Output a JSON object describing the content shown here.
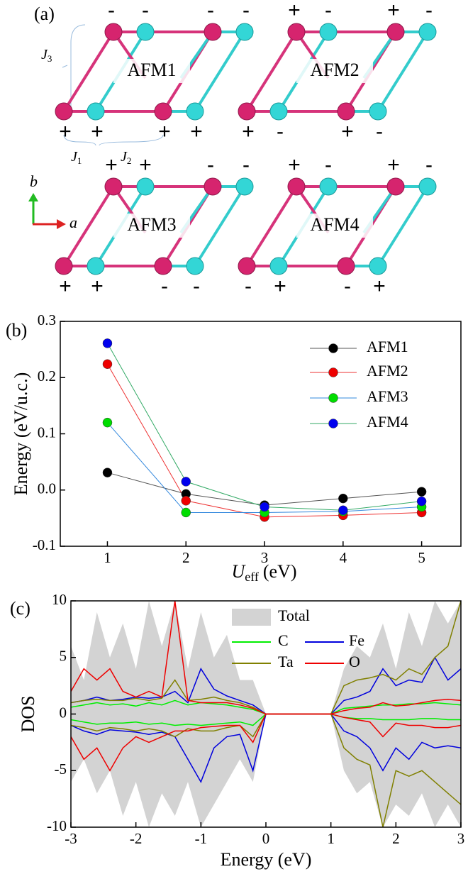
{
  "panel_a": {
    "label": "(a)",
    "diagrams": [
      {
        "label": "AFM1",
        "signs_top": [
          "-",
          "-",
          "-",
          "-"
        ],
        "signs_bottom": [
          "+",
          "+",
          "+",
          "+"
        ]
      },
      {
        "label": "AFM2",
        "signs_top": [
          "+",
          "-",
          "+",
          "-"
        ],
        "signs_bottom": [
          "+",
          "-",
          "+",
          "-"
        ]
      },
      {
        "label": "AFM3",
        "signs_top": [
          "+",
          "+",
          "-",
          "-"
        ],
        "signs_bottom": [
          "+",
          "+",
          "-",
          "-"
        ]
      },
      {
        "label": "AFM4",
        "signs_top": [
          "+",
          "-",
          "+",
          "-"
        ],
        "signs_bottom": [
          "-",
          "+",
          "-",
          "+"
        ]
      }
    ],
    "couplings": [
      {
        "symbol": "J",
        "sub": "3"
      },
      {
        "symbol": "J",
        "sub": "1"
      },
      {
        "symbol": "J",
        "sub": "2"
      }
    ],
    "axes": [
      "b",
      "a"
    ]
  },
  "chart_data": [
    {
      "type": "line",
      "panel_label": "(b)",
      "ylabel": "Energy (eV/u.c.)",
      "xlabel": {
        "symbol": "U",
        "sub": "eff",
        "unit": "(eV)"
      },
      "x": [
        1,
        2,
        3,
        4,
        5
      ],
      "xlim": [
        0.4,
        5.5
      ],
      "xticks": [
        1,
        2,
        3,
        4,
        5
      ],
      "ylim": [
        -0.1,
        0.3
      ],
      "yticks": [
        -0.1,
        {
          "value": 0,
          "label": "0.0"
        },
        0.1,
        0.2,
        0.3
      ],
      "legend": "upper right",
      "series": [
        {
          "name": "AFM1",
          "color": "#000000",
          "line_color": "#555555",
          "values": [
            0.031,
            -0.007,
            -0.027,
            -0.015,
            -0.003
          ]
        },
        {
          "name": "AFM2",
          "color": "#ee0000",
          "line_color": "#ee3333",
          "values": [
            0.224,
            -0.019,
            -0.048,
            -0.045,
            -0.04
          ]
        },
        {
          "name": "AFM3",
          "color": "#00dd00",
          "line_color": "#3388dd",
          "values": [
            0.12,
            -0.04,
            -0.04,
            -0.038,
            -0.03
          ]
        },
        {
          "name": "AFM4",
          "color": "#0000ee",
          "line_color": "#33aa66",
          "values": [
            0.261,
            0.015,
            -0.03,
            -0.036,
            -0.02
          ]
        }
      ]
    },
    {
      "type": "dos",
      "panel_label": "(c)",
      "ylabel": "DOS",
      "xlabel": "Energy (eV)",
      "x": [
        -3,
        -2.8,
        -2.6,
        -2.4,
        -2.2,
        -2,
        -1.8,
        -1.6,
        -1.4,
        -1.2,
        -1,
        -0.8,
        -0.6,
        -0.4,
        -0.2,
        0,
        0.2,
        0.4,
        0.6,
        0.8,
        1,
        1.2,
        1.4,
        1.6,
        1.8,
        2,
        2.2,
        2.4,
        2.6,
        2.8,
        3
      ],
      "xlim": [
        -3,
        3
      ],
      "xticks": [
        -3,
        -2,
        -1,
        0,
        1,
        2,
        3
      ],
      "ylim": [
        -10,
        10
      ],
      "yticks": [
        -10,
        -5,
        0,
        5,
        10
      ],
      "series": [
        {
          "name": "Total",
          "color": "#d3d3d3",
          "fill": true,
          "values": [
            6,
            3,
            9,
            5,
            8,
            4,
            10,
            6,
            10,
            4,
            9,
            5,
            7,
            3,
            3,
            0,
            0,
            0,
            0,
            0,
            0,
            4,
            6,
            5,
            8,
            4,
            9,
            6,
            10,
            8,
            10
          ],
          "values_down": [
            -6,
            -4,
            -7,
            -5,
            -9,
            -6,
            -10,
            -7,
            -9,
            -6,
            -10,
            -8,
            -6,
            -4,
            -6,
            0,
            0,
            0,
            0,
            0,
            0,
            -5,
            -7,
            -6,
            -10,
            -8,
            -9,
            -7,
            -10,
            -8,
            -10
          ]
        },
        {
          "name": "C",
          "color": "#00ee00",
          "values": [
            0.6,
            0.8,
            1,
            0.8,
            0.9,
            0.7,
            1,
            0.8,
            1.2,
            0.8,
            1,
            0.9,
            0.8,
            0.6,
            0.4,
            0,
            0,
            0,
            0,
            0,
            0,
            0.5,
            0.6,
            0.7,
            0.8,
            0.8,
            0.9,
            0.9,
            1,
            0.9,
            0.8
          ],
          "values_down": [
            -0.5,
            -0.7,
            -0.9,
            -0.8,
            -0.8,
            -0.7,
            -0.9,
            -0.8,
            -1,
            -0.9,
            -1,
            -0.9,
            -0.8,
            -0.7,
            -1,
            0,
            0,
            0,
            0,
            0,
            0,
            -0.3,
            -0.4,
            -0.4,
            -0.5,
            -0.5,
            -0.5,
            -0.4,
            -0.4,
            -0.5,
            -0.5
          ]
        },
        {
          "name": "Fe",
          "color": "#0000dd",
          "values": [
            1,
            1.2,
            1.5,
            1.2,
            1.3,
            1.5,
            1.4,
            1.5,
            2,
            1,
            4,
            2.2,
            1.6,
            1.2,
            0.8,
            0,
            0,
            0,
            0,
            0,
            0,
            1.2,
            1.5,
            2,
            4,
            2.5,
            3,
            2.8,
            5,
            3,
            4
          ],
          "values_down": [
            -1,
            -1.5,
            -1.8,
            -1.4,
            -1.5,
            -1.6,
            -1.8,
            -1.6,
            -2,
            -4,
            -6,
            -3,
            -2,
            -1.8,
            -5,
            0,
            0,
            0,
            0,
            0,
            0,
            -1.5,
            -2,
            -3,
            -5,
            -3,
            -4,
            -2.5,
            -3,
            -2.8,
            -3
          ]
        },
        {
          "name": "Ta",
          "color": "#808000",
          "values": [
            1,
            1.2,
            1.3,
            1.2,
            1.2,
            1.4,
            1.2,
            1.4,
            3,
            1.2,
            1.3,
            1.5,
            1.2,
            1,
            0.6,
            0,
            0,
            0,
            0,
            0,
            0,
            2.5,
            3,
            3.2,
            3.5,
            3,
            4,
            3.5,
            5,
            6,
            10
          ],
          "values_down": [
            -1,
            -1.2,
            -1.5,
            -1.2,
            -1.3,
            -1.5,
            -1.3,
            -1.5,
            -2,
            -1.3,
            -1.5,
            -1.5,
            -1.2,
            -1,
            -2,
            0,
            0,
            0,
            0,
            0,
            0,
            -3,
            -4,
            -4.5,
            -10,
            -5,
            -5.5,
            -5,
            -6,
            -7,
            -8
          ]
        },
        {
          "name": "O",
          "color": "#ee0000",
          "values": [
            2,
            4,
            3,
            4,
            2,
            1.5,
            2,
            1.5,
            10,
            1.2,
            1,
            1,
            1,
            0.8,
            0.5,
            0,
            0,
            0,
            0,
            0,
            0,
            0.3,
            0.5,
            0.6,
            1,
            0.7,
            0.8,
            1,
            1.2,
            1.3,
            1.2
          ],
          "values_down": [
            -2,
            -4,
            -3,
            -5,
            -3,
            -2,
            -2.5,
            -2,
            -1.5,
            -1.5,
            -1.2,
            -1.1,
            -1,
            -1,
            -2.5,
            0,
            0,
            0,
            0,
            0,
            0,
            -0.3,
            -0.5,
            -0.7,
            -2,
            -0.8,
            -1,
            -1,
            -1.2,
            -1.2,
            -1
          ]
        }
      ]
    }
  ]
}
